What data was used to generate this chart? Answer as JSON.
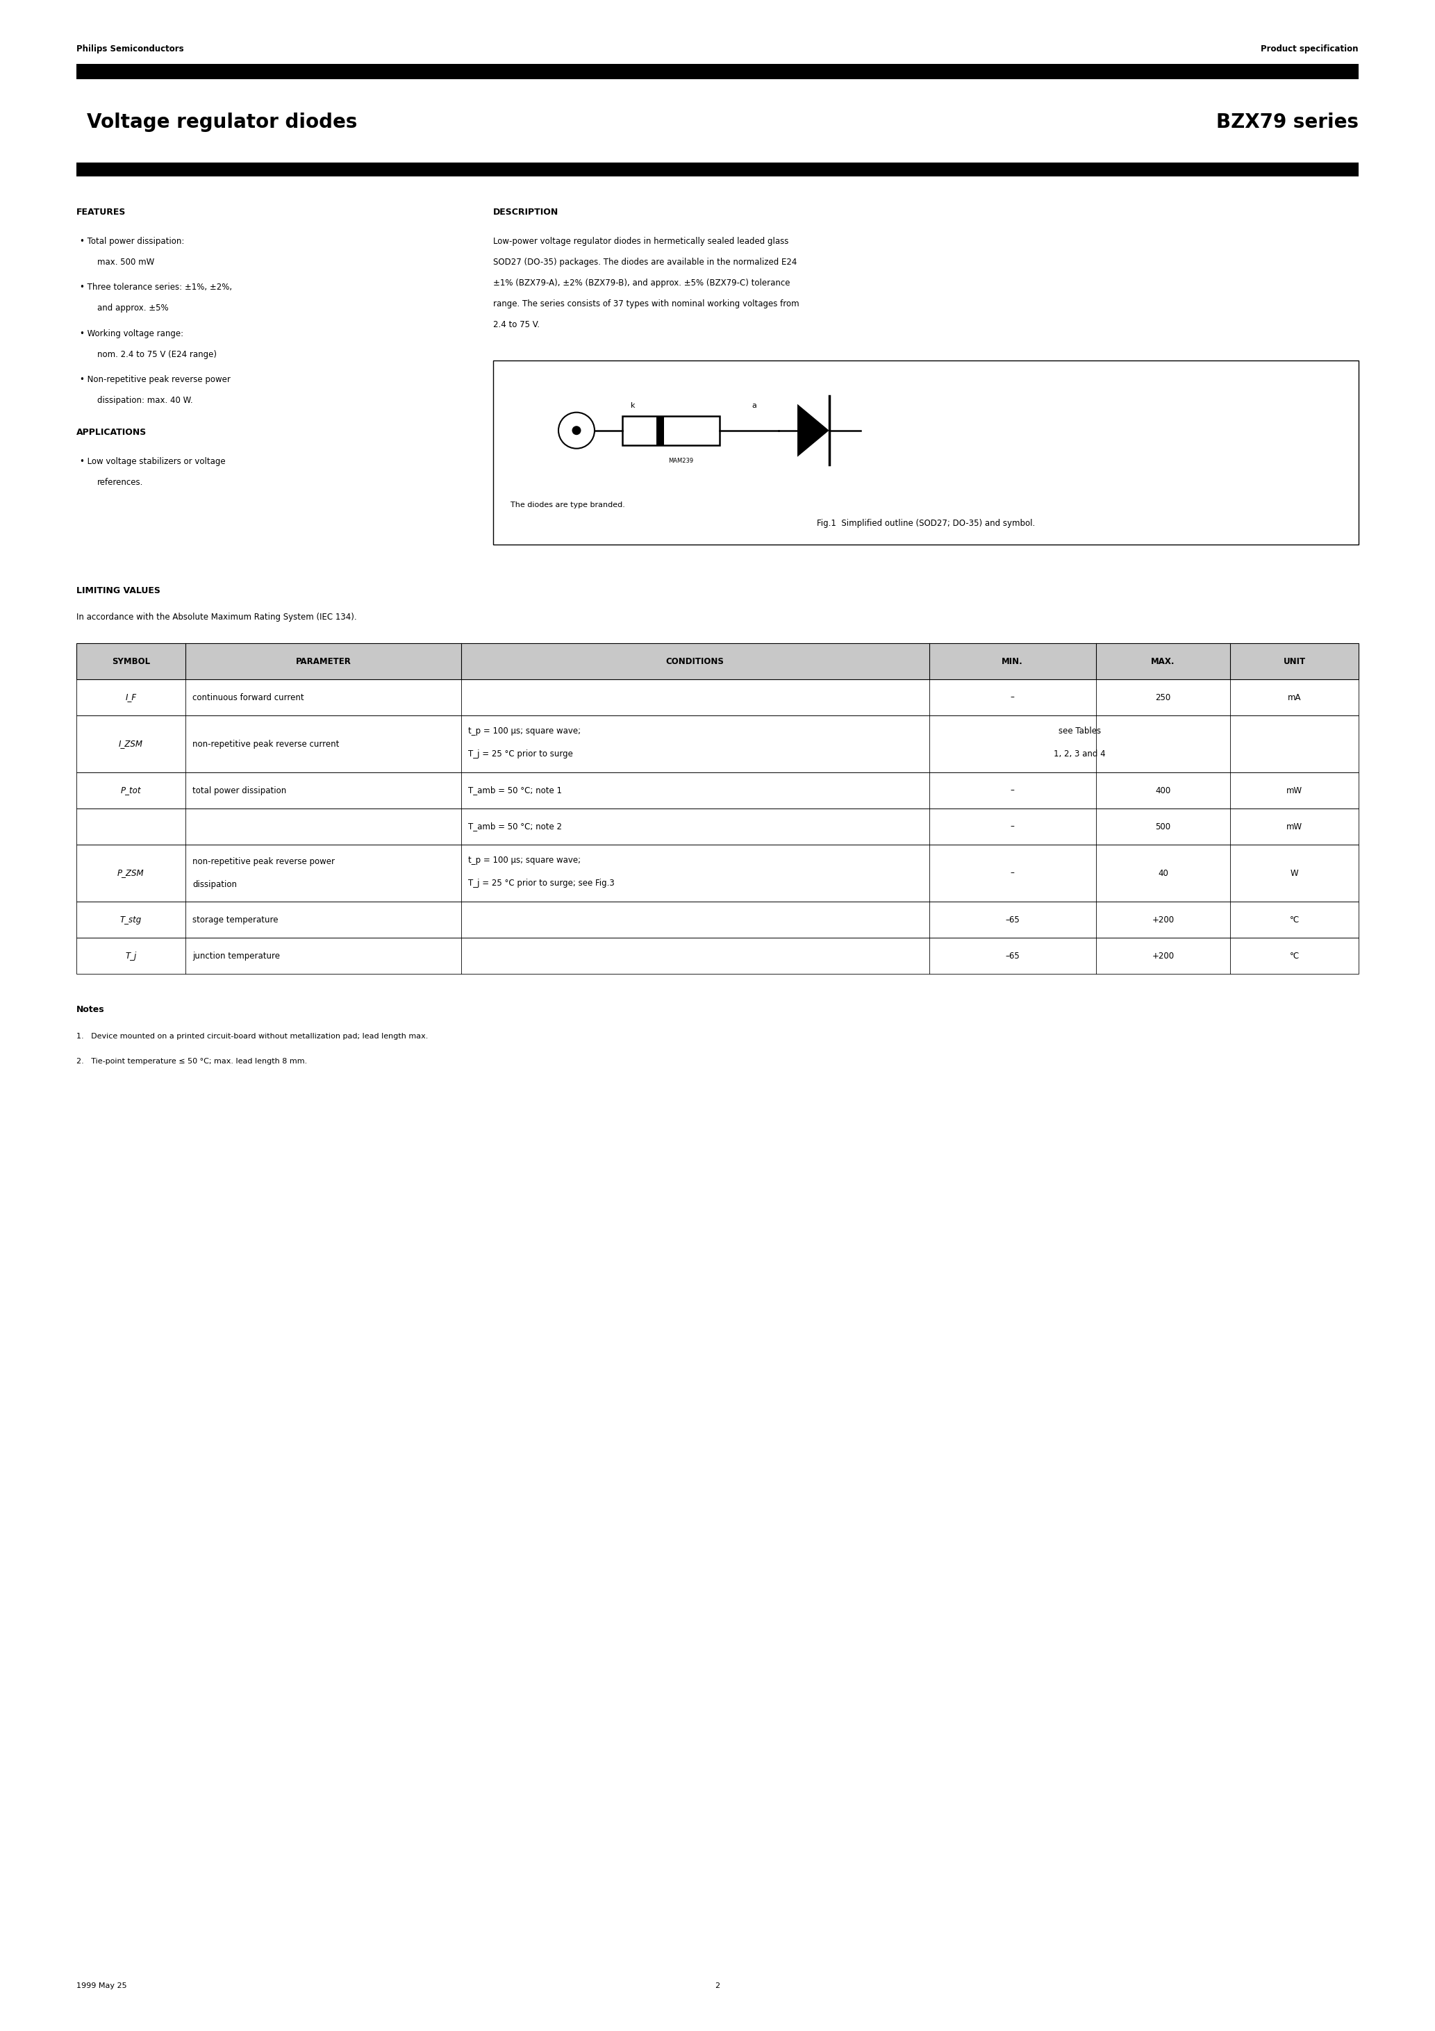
{
  "page_width": 20.66,
  "page_height": 29.24,
  "bg_color": "#ffffff",
  "header_left": "Philips Semiconductors",
  "header_right": "Product specification",
  "title_left": "Voltage regulator diodes",
  "title_right": "BZX79 series",
  "features_title": "FEATURES",
  "features_bullets": [
    [
      "Total power dissipation:",
      "max. 500 mW"
    ],
    [
      "Three tolerance series: ±1%, ±2%,",
      "and approx. ±5%"
    ],
    [
      "Working voltage range:",
      "nom. 2.4 to 75 V (E24 range)"
    ],
    [
      "Non-repetitive peak reverse power",
      "dissipation: max. 40 W."
    ]
  ],
  "applications_title": "APPLICATIONS",
  "applications_bullets": [
    [
      "Low voltage stabilizers or voltage",
      "references."
    ]
  ],
  "description_title": "DESCRIPTION",
  "description_lines": [
    "Low-power voltage regulator diodes in hermetically sealed leaded glass",
    "SOD27 (DO-35) packages. The diodes are available in the normalized E24",
    "±1% (BZX79-A), ±2% (BZX79-B), and approx. ±5% (BZX79-C) tolerance",
    "range. The series consists of 37 types with nominal working voltages from",
    "2.4 to 75 V."
  ],
  "fig_caption": "Fig.1  Simplified outline (SOD27; DO-35) and symbol.",
  "fig_note": "The diodes are type branded.",
  "limiting_title": "LIMITING VALUES",
  "limiting_subtitle": "In accordance with the Absolute Maximum Rating System (IEC 134).",
  "table_col_headers": [
    "SYMBOL",
    "PARAMETER",
    "CONDITIONS",
    "MIN.",
    "MAX.",
    "UNIT"
  ],
  "table_col_weights": [
    0.085,
    0.215,
    0.365,
    0.13,
    0.105,
    0.1
  ],
  "table_rows": [
    {
      "symbol": "I_F",
      "param": "continuous forward current",
      "cond_lines": [],
      "min": "–",
      "max": "250",
      "unit": "mA",
      "nlines": 1
    },
    {
      "symbol": "I_ZSM",
      "param": "non-repetitive peak reverse current",
      "cond_lines": [
        "t_p = 100 μs; square wave;",
        "T_j = 25 °C prior to surge"
      ],
      "min": "see Tables",
      "min2": "1, 2, 3 and 4",
      "max": "",
      "unit": "",
      "nlines": 2
    },
    {
      "symbol": "P_tot",
      "param": "total power dissipation",
      "cond_lines": [
        "T_amb = 50 °C; note 1"
      ],
      "min": "–",
      "max": "400",
      "unit": "mW",
      "nlines": 1
    },
    {
      "symbol": "",
      "param": "",
      "cond_lines": [
        "T_amb = 50 °C; note 2"
      ],
      "min": "–",
      "max": "500",
      "unit": "mW",
      "nlines": 1
    },
    {
      "symbol": "P_ZSM",
      "param_lines": [
        "non-repetitive peak reverse power",
        "dissipation"
      ],
      "cond_lines": [
        "t_p = 100 μs; square wave;",
        "T_j = 25 °C prior to surge; see Fig.3"
      ],
      "min": "–",
      "max": "40",
      "unit": "W",
      "nlines": 2
    },
    {
      "symbol": "T_stg",
      "param": "storage temperature",
      "cond_lines": [],
      "min": "–65",
      "max": "+200",
      "unit": "°C",
      "nlines": 1
    },
    {
      "symbol": "T_j",
      "param": "junction temperature",
      "cond_lines": [],
      "min": "–65",
      "max": "+200",
      "unit": "°C",
      "nlines": 1
    }
  ],
  "notes_title": "Notes",
  "notes": [
    "1.   Device mounted on a printed circuit-board without metallization pad; lead length max.",
    "2.   Tie-point temperature ≤ 50 °C; max. lead length 8 mm."
  ],
  "footer_left": "1999 May 25",
  "footer_center": "2"
}
